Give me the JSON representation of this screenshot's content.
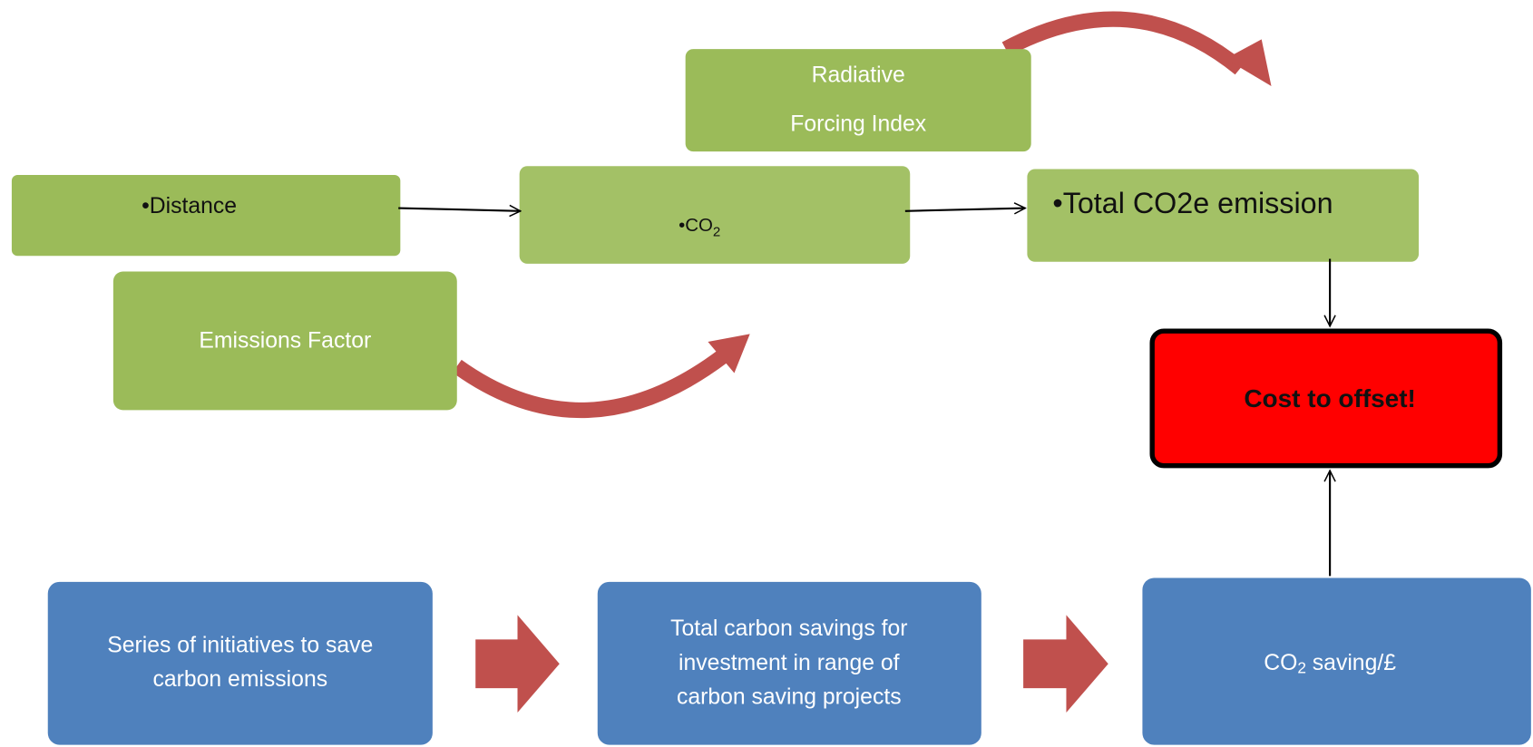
{
  "nodes": [
    {
      "label": [
        "Radiative",
        "Forcing Index"
      ]
    },
    {
      "label": [
        "•Distance"
      ]
    },
    {
      "label": [
        "•CO"
      ],
      "sub": "2"
    },
    {
      "label": [
        "•Total CO2e emission"
      ]
    },
    {
      "label": [
        "Emissions Factor"
      ]
    },
    {
      "label": [
        "Cost to offset!"
      ]
    },
    {
      "label": [
        "Series of initiatives to save",
        "carbon emissions"
      ]
    },
    {
      "label": [
        "Total carbon savings for",
        "investment in range of",
        "carbon saving projects"
      ]
    },
    {
      "label": [
        "CO"
      ],
      "sub": "2",
      "rest": " saving/£"
    }
  ]
}
